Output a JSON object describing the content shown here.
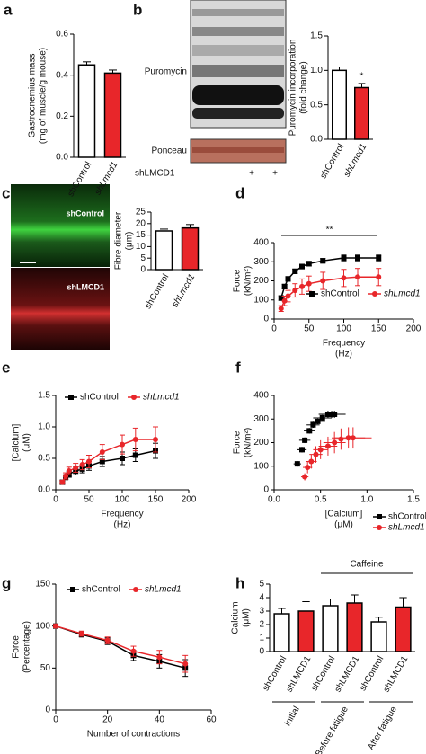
{
  "blot": {
    "panel": "b",
    "bands": [
      "Puromycin",
      "Ponceau"
    ],
    "lane_label": "shLMCD1",
    "lanes": [
      "-",
      "-",
      "+",
      "+"
    ]
  },
  "images": {
    "panel": "c",
    "labels": [
      "shControl",
      "shLMCD1"
    ]
  },
  "chart_data": [
    {
      "type": "bar",
      "panel": "a",
      "ylabel": [
        "Gastrocnemius mass",
        "(mg of muscle/g mouse)"
      ],
      "categories": [
        "shControl",
        "shLmcd1"
      ],
      "values": [
        0.45,
        0.41
      ],
      "errors": [
        0.015,
        0.015
      ],
      "colors": [
        "#ffffff",
        "#e8262a"
      ],
      "ylim": [
        0,
        0.6
      ],
      "yticks": [
        {
          "value": 0,
          "label": "0.0"
        },
        0.2,
        0.4,
        0.6
      ]
    },
    {
      "type": "bar",
      "ylabel": [
        "Puromycin incorporation",
        "(fold change)"
      ],
      "categories": [
        "shControl",
        "shLmcd1"
      ],
      "values": [
        1.0,
        0.75
      ],
      "errors": [
        0.05,
        0.06
      ],
      "colors": [
        "#ffffff",
        "#e8262a"
      ],
      "annotation": "*",
      "ylim": [
        0,
        1.5
      ],
      "yticks": [
        {
          "value": 0,
          "label": "0.0"
        },
        0.5,
        {
          "value": 1,
          "label": "1.0"
        },
        1.5
      ]
    },
    {
      "type": "bar",
      "ylabel": [
        "Fibre diameter",
        "(μm)"
      ],
      "categories": [
        "shControl",
        "shLmcd1"
      ],
      "values": [
        16.8,
        18.1
      ],
      "errors": [
        0.8,
        1.5
      ],
      "colors": [
        "#ffffff",
        "#e8262a"
      ],
      "ylim": [
        0,
        25
      ],
      "yticks": [
        0,
        5,
        10,
        15,
        20,
        25
      ]
    },
    {
      "type": "line",
      "panel": "d",
      "ylabel": [
        "Force",
        "(kN/m²)"
      ],
      "xlabel": [
        "Frequency",
        "(Hz)"
      ],
      "annotation": "**",
      "x": [
        10,
        15,
        20,
        30,
        40,
        50,
        70,
        100,
        120,
        150
      ],
      "series": [
        {
          "name": "shControl",
          "color": "#000000",
          "marker": "square",
          "values": [
            110,
            170,
            210,
            250,
            275,
            290,
            305,
            320,
            320,
            320
          ],
          "errors": [
            12,
            12,
            12,
            12,
            12,
            12,
            12,
            15,
            15,
            15
          ]
        },
        {
          "name": "shLmcd1",
          "color": "#e8262a",
          "marker": "circle",
          "values": [
            55,
            95,
            120,
            150,
            170,
            185,
            200,
            215,
            220,
            220
          ],
          "errors": [
            15,
            25,
            30,
            35,
            40,
            40,
            45,
            45,
            45,
            45
          ]
        }
      ],
      "legend": "lower right",
      "xlim": [
        0,
        200
      ],
      "xticks": [
        0,
        50,
        100,
        150,
        200
      ],
      "ylim": [
        0,
        400
      ],
      "yticks": [
        0,
        100,
        200,
        300,
        400
      ]
    },
    {
      "type": "line",
      "panel": "e",
      "ylabel": [
        "[Calcium]",
        "(μM)"
      ],
      "xlabel": [
        "Frequency",
        "(Hz)"
      ],
      "x": [
        10,
        15,
        20,
        30,
        40,
        50,
        70,
        100,
        120,
        150
      ],
      "series": [
        {
          "name": "shControl",
          "color": "#000000",
          "marker": "square",
          "values": [
            0.12,
            0.2,
            0.25,
            0.3,
            0.33,
            0.38,
            0.45,
            0.5,
            0.55,
            0.62
          ],
          "errors": [
            0.03,
            0.04,
            0.05,
            0.06,
            0.06,
            0.07,
            0.08,
            0.1,
            0.1,
            0.12
          ]
        },
        {
          "name": "shLmcd1",
          "color": "#e8262a",
          "marker": "circle",
          "values": [
            0.12,
            0.22,
            0.3,
            0.35,
            0.4,
            0.45,
            0.6,
            0.72,
            0.8,
            0.8
          ],
          "errors": [
            0.03,
            0.05,
            0.06,
            0.07,
            0.08,
            0.1,
            0.12,
            0.15,
            0.18,
            0.2
          ]
        }
      ],
      "legend": "upper left",
      "xlim": [
        0,
        200
      ],
      "xticks": [
        0,
        50,
        100,
        150,
        200
      ],
      "ylim": [
        0,
        1.5
      ],
      "yticks": [
        {
          "value": 0,
          "label": "0.0"
        },
        0.5,
        {
          "value": 1,
          "label": "1.0"
        },
        1.5
      ]
    },
    {
      "type": "scatter",
      "panel": "f",
      "ylabel": [
        "Force",
        "(kN/m²)"
      ],
      "xlabel": [
        "[Calcium]",
        "(μM)"
      ],
      "series": [
        {
          "name": "shControl",
          "color": "#000000",
          "marker": "square",
          "x": [
            0.25,
            0.3,
            0.33,
            0.38,
            0.42,
            0.47,
            0.52,
            0.58,
            0.62,
            0.65
          ],
          "values": [
            110,
            170,
            210,
            250,
            275,
            290,
            305,
            320,
            320,
            320
          ],
          "xerr": [
            0.04,
            0.05,
            0.06,
            0.06,
            0.07,
            0.08,
            0.1,
            0.1,
            0.12,
            0.12
          ],
          "yerr": [
            12,
            12,
            12,
            12,
            12,
            12,
            12,
            15,
            15,
            15
          ]
        },
        {
          "name": "shLmcd1",
          "color": "#e8262a",
          "marker": "circle",
          "x": [
            0.33,
            0.36,
            0.4,
            0.45,
            0.5,
            0.58,
            0.65,
            0.72,
            0.8,
            0.85
          ],
          "values": [
            55,
            95,
            120,
            150,
            170,
            185,
            200,
            215,
            220,
            220
          ],
          "xerr": [
            0.04,
            0.05,
            0.06,
            0.07,
            0.08,
            0.1,
            0.12,
            0.15,
            0.18,
            0.2
          ],
          "yerr": [
            15,
            25,
            30,
            35,
            40,
            40,
            45,
            45,
            45,
            45
          ]
        }
      ],
      "legend": "lower right",
      "xlim": [
        0,
        1.5
      ],
      "xticks": [
        {
          "value": 0,
          "label": "0.0"
        },
        0.5,
        {
          "value": 1,
          "label": "1.0"
        },
        1.5
      ],
      "ylim": [
        0,
        400
      ],
      "yticks": [
        0,
        100,
        200,
        300,
        400
      ]
    },
    {
      "type": "line",
      "panel": "g",
      "ylabel": [
        "Force",
        "(Percentage)"
      ],
      "xlabel": [
        "Number of contractions"
      ],
      "x": [
        0,
        10,
        20,
        30,
        40,
        50
      ],
      "series": [
        {
          "name": "shControl",
          "color": "#000000",
          "marker": "square",
          "values": [
            100,
            90,
            82,
            65,
            58,
            50
          ],
          "errors": [
            2,
            3,
            4,
            6,
            8,
            10
          ]
        },
        {
          "name": "shLmcd1",
          "color": "#e8262a",
          "marker": "circle",
          "values": [
            100,
            91,
            83,
            70,
            63,
            55
          ],
          "errors": [
            2,
            3,
            4,
            6,
            8,
            10
          ]
        }
      ],
      "legend": "upper right",
      "xlim": [
        0,
        60
      ],
      "xticks": [
        0,
        20,
        40,
        60
      ],
      "ylim": [
        0,
        150
      ],
      "yticks": [
        0,
        50,
        100,
        150
      ]
    },
    {
      "type": "bar",
      "panel": "h",
      "ylabel": [
        "Calcium",
        "(μM)"
      ],
      "annotation": "Caffeine",
      "categories": [
        "shControl",
        "shLMCD1",
        "shControl",
        "shLMCD1",
        "shControl",
        "shLMCD1"
      ],
      "groups": [
        "Initial",
        "Before fatigue",
        "After fatigue"
      ],
      "values": [
        2.8,
        3.0,
        3.4,
        3.6,
        2.2,
        3.3
      ],
      "errors": [
        0.4,
        0.7,
        0.5,
        0.6,
        0.35,
        0.7
      ],
      "colors": [
        "#ffffff",
        "#e8262a",
        "#ffffff",
        "#e8262a",
        "#ffffff",
        "#e8262a"
      ],
      "ylim": [
        0,
        5
      ],
      "yticks": [
        0,
        1,
        2,
        3,
        4,
        5
      ]
    }
  ]
}
